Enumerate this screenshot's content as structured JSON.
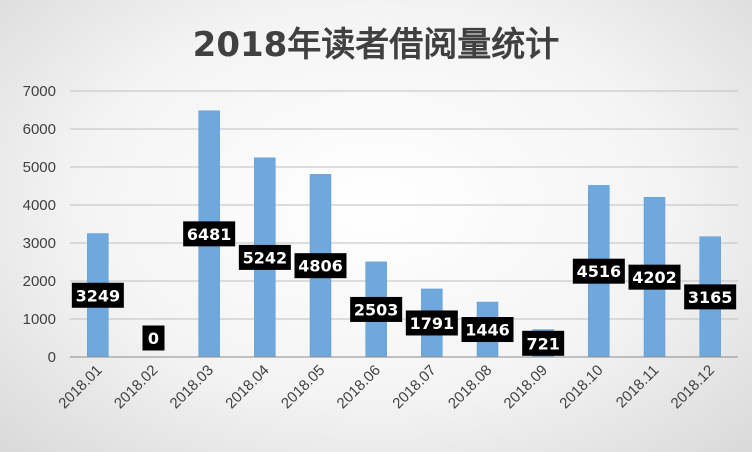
{
  "chart_data": {
    "type": "bar",
    "title": "2018年读者借阅量统计",
    "xlabel": "",
    "ylabel": "",
    "categories": [
      "2018.01",
      "2018.02",
      "2018.03",
      "2018.04",
      "2018.05",
      "2018.06",
      "2018.07",
      "2018.08",
      "2018.09",
      "2018.10",
      "2018.11",
      "2018.12"
    ],
    "values": [
      3249,
      0,
      6481,
      5242,
      4806,
      2503,
      1791,
      1446,
      721,
      4516,
      4202,
      3165
    ],
    "ylim": [
      0,
      7000
    ],
    "yticks": [
      0,
      1000,
      2000,
      3000,
      4000,
      5000,
      6000,
      7000
    ],
    "grid": true,
    "legend": "none",
    "colors": {
      "bar": "#6fa8dc",
      "label_bg": "#000000",
      "label_text": "#ffffff"
    }
  }
}
